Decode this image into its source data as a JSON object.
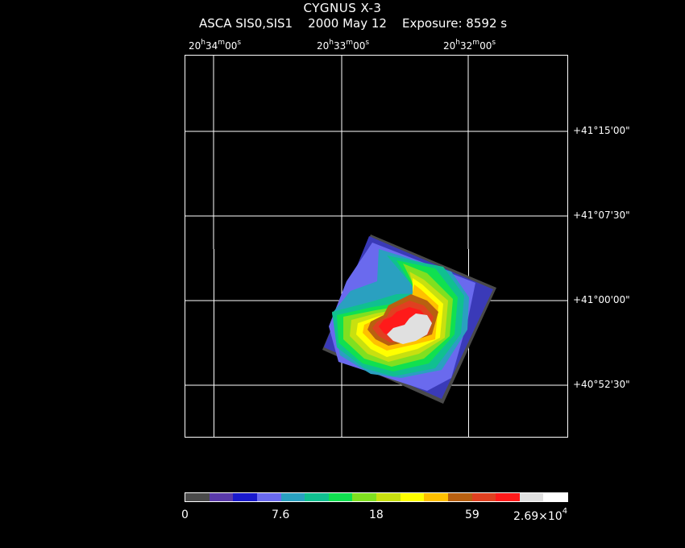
{
  "header": {
    "title": "CYGNUS X-3",
    "instrument": "ASCA SIS0,SIS1",
    "date": "2000 May 12",
    "exposure": "Exposure: 8592 s"
  },
  "ra_labels": [
    {
      "h": "20",
      "m": "34",
      "s": "00"
    },
    {
      "h": "20",
      "m": "33",
      "s": "00"
    },
    {
      "h": "20",
      "m": "32",
      "s": "00"
    }
  ],
  "dec_labels": [
    "+41°15'00\"",
    "+41°07'30\"",
    "+41°00'00\"",
    "+40°52'30\""
  ],
  "colorbar": {
    "colors": [
      "#4a4a4a",
      "#5a3aaa",
      "#1a1acc",
      "#6a6aee",
      "#2aa0c0",
      "#10c090",
      "#10e050",
      "#80e020",
      "#c8e010",
      "#ffff00",
      "#ffc000",
      "#b86010",
      "#e04020",
      "#ff1a1a",
      "#e0e0e0",
      "#ffffff"
    ],
    "labels": {
      "min": "0",
      "l1": "7.6",
      "l2": "18",
      "l3": "59",
      "max_mantissa": "2.69×10",
      "max_exponent": "4"
    }
  }
}
